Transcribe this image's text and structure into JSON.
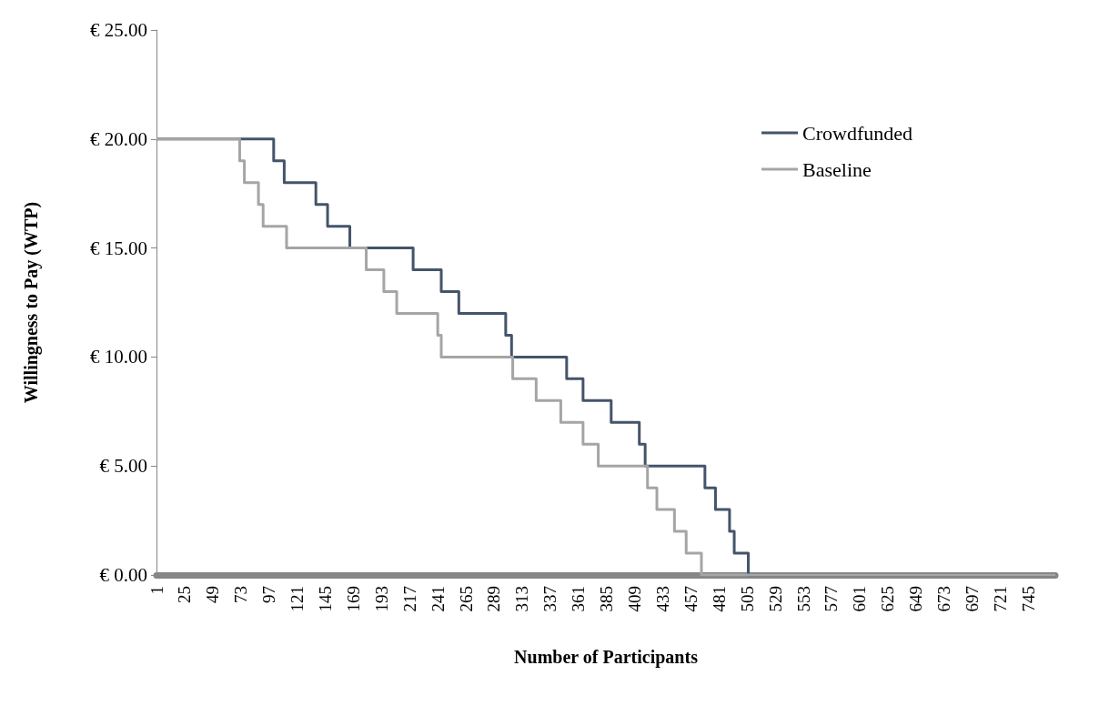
{
  "chart_data": {
    "type": "step",
    "xlabel": "Number of Participants",
    "ylabel": "Willingness to Pay (WTP)",
    "xlim": [
      1,
      768
    ],
    "xticks": [
      1,
      25,
      49,
      73,
      97,
      121,
      145,
      169,
      193,
      217,
      241,
      265,
      289,
      313,
      337,
      361,
      385,
      409,
      433,
      457,
      481,
      505,
      529,
      553,
      577,
      601,
      625,
      649,
      673,
      697,
      721,
      745
    ],
    "ylim": [
      0,
      25
    ],
    "yticks": [
      {
        "value": 0,
        "label": "€ 0.00"
      },
      {
        "value": 5,
        "label": "€ 5.00"
      },
      {
        "value": 10,
        "label": "€ 10.00"
      },
      {
        "value": 15,
        "label": "€ 15.00"
      },
      {
        "value": 20,
        "label": "€ 20.00"
      },
      {
        "value": 25,
        "label": "€ 25.00"
      }
    ],
    "grid": false,
    "legend": "top right",
    "marker": "none",
    "line_style": "solid",
    "series": [
      {
        "name": "Crowdfunded",
        "color": "#44546a",
        "x": [
          1,
          101,
          110,
          137,
          147,
          166,
          220,
          244,
          259,
          299,
          304,
          351,
          365,
          389,
          413,
          418,
          469,
          478,
          490,
          494,
          506,
          768
        ],
        "values": [
          20,
          19,
          18,
          17,
          16,
          15,
          14,
          13,
          12,
          11,
          10,
          9,
          8,
          7,
          6,
          5,
          4,
          3,
          2,
          1,
          0,
          0
        ]
      },
      {
        "name": "Baseline",
        "color": "#a5a5a5",
        "x": [
          1,
          72,
          76,
          88,
          92,
          112,
          180,
          195,
          206,
          241,
          244,
          305,
          325,
          346,
          365,
          378,
          420,
          428,
          443,
          453,
          466,
          768
        ],
        "values": [
          20,
          19,
          18,
          17,
          16,
          15,
          14,
          13,
          12,
          11,
          10,
          9,
          8,
          7,
          6,
          5,
          4,
          3,
          2,
          1,
          0,
          0
        ]
      }
    ]
  }
}
